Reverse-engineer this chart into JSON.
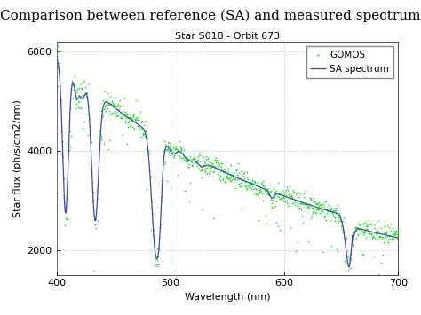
{
  "title": "Comparison between reference (SA) and measured spectrum",
  "subtitle": "Star S018 - Orbit 673",
  "xlabel": "Wavelength (nm)",
  "ylabel": "Star flux (ph/s/cm2/nm)",
  "xlim": [
    400,
    700
  ],
  "ylim": [
    1500,
    6200
  ],
  "yticks": [
    2000,
    4000,
    6000
  ],
  "xticks": [
    400,
    500,
    600,
    700
  ],
  "grid_color": "#aaaaaa",
  "background_color": "#ffffff",
  "gomos_color": "#00dd00",
  "sa_color": "#4444bb",
  "legend_labels": [
    "GOMOS",
    "SA spectrum"
  ],
  "title_fontsize": 11,
  "subtitle_fontsize": 8,
  "axis_label_fontsize": 8,
  "tick_fontsize": 8
}
